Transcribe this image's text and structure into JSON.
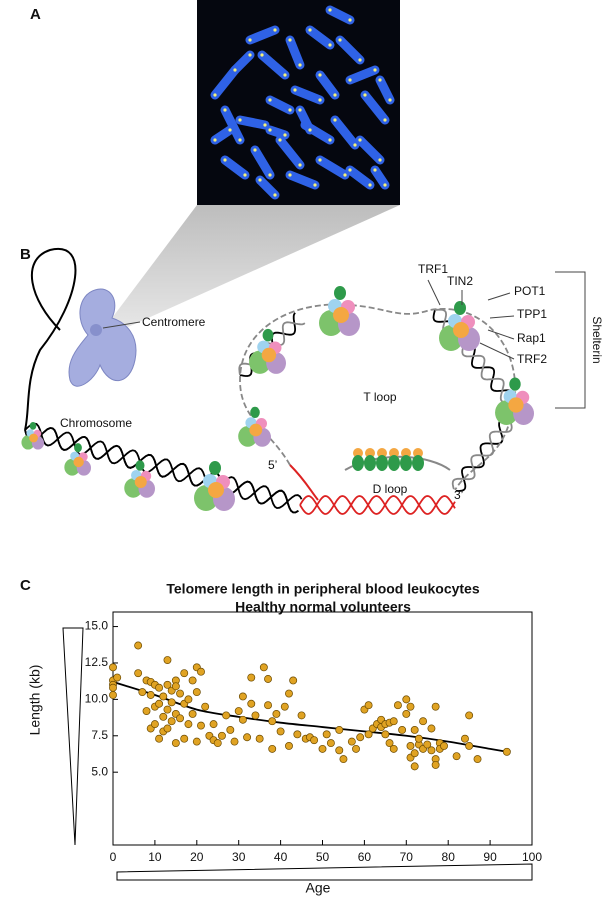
{
  "panels": {
    "a": {
      "label": "A"
    },
    "b": {
      "label": "B",
      "centromere": "Centromere",
      "chromosome": "Chromosome",
      "trf1": "TRF1",
      "tin2": "TIN2",
      "pot1": "POT1",
      "tpp1": "TPP1",
      "rap1": "Rap1",
      "trf2": "TRF2",
      "shelterin": "Shelterin",
      "t_loop": "T loop",
      "d_loop": "D loop",
      "five_prime": "5’",
      "three_prime": "3’"
    },
    "c": {
      "label": "C"
    }
  },
  "chart_data": {
    "type": "scatter",
    "title": "Telomere length in peripheral blood leukocytes",
    "subtitle": "Healthy normal volunteers",
    "x_label": "Age",
    "y_label": "Length (kb)",
    "xlim": [
      0,
      100
    ],
    "ylim": [
      0,
      16
    ],
    "xticks": [
      0,
      10,
      20,
      30,
      40,
      50,
      60,
      70,
      80,
      90,
      100
    ],
    "yticks": [
      {
        "value": 5,
        "label": "5.0"
      },
      {
        "value": 7.5,
        "label": "7.5"
      },
      {
        "value": 10,
        "label": "10.0"
      },
      {
        "value": 12.5,
        "label": "12.5"
      },
      {
        "value": 15,
        "label": "15.0"
      }
    ],
    "series": [
      {
        "color": "#e0a323",
        "x": [
          0,
          0,
          0,
          0,
          0,
          1,
          6,
          6,
          7,
          8,
          8,
          9,
          9,
          9,
          10,
          10,
          10,
          11,
          11,
          11,
          12,
          12,
          12,
          13,
          13,
          13,
          13,
          14,
          14,
          14,
          15,
          15,
          15,
          15,
          16,
          16,
          17,
          17,
          17,
          18,
          18,
          19,
          19,
          20,
          20,
          20,
          21,
          21,
          22,
          23,
          24,
          24,
          25,
          26,
          27,
          28,
          29,
          30,
          31,
          31,
          32,
          33,
          33,
          34,
          35,
          36,
          37,
          37,
          38,
          38,
          39,
          40,
          41,
          42,
          42,
          43,
          44,
          45,
          46,
          47,
          48,
          50,
          51,
          52,
          54,
          54,
          55,
          57,
          58,
          59,
          60,
          61,
          61,
          62,
          63,
          64,
          64,
          65,
          65,
          66,
          66,
          67,
          67,
          68,
          69,
          70,
          70,
          71,
          71,
          71,
          72,
          72,
          72,
          73,
          73,
          74,
          74,
          75,
          76,
          76,
          77,
          77,
          77,
          78,
          78,
          79,
          82,
          84,
          85,
          85,
          87,
          94
        ],
        "values": [
          12.2,
          11.3,
          11.0,
          10.8,
          10.3,
          11.5,
          13.7,
          11.8,
          10.5,
          11.3,
          9.2,
          11.2,
          10.3,
          8.0,
          11.0,
          9.5,
          8.3,
          10.8,
          9.7,
          7.3,
          10.2,
          8.8,
          7.8,
          12.7,
          11.0,
          9.3,
          8.0,
          10.6,
          9.8,
          8.5,
          11.3,
          10.9,
          9.0,
          7.0,
          10.4,
          8.7,
          11.8,
          9.7,
          7.3,
          10.0,
          8.3,
          11.3,
          9.0,
          12.2,
          10.5,
          7.1,
          11.9,
          8.2,
          9.5,
          7.5,
          8.3,
          7.2,
          7.0,
          7.5,
          8.9,
          7.9,
          7.1,
          9.2,
          10.2,
          8.6,
          7.4,
          11.5,
          9.7,
          8.9,
          7.3,
          12.2,
          11.4,
          9.6,
          8.5,
          6.6,
          9.0,
          7.8,
          9.5,
          6.8,
          10.4,
          11.3,
          7.6,
          8.9,
          7.3,
          7.4,
          7.2,
          6.6,
          7.6,
          7.0,
          7.9,
          6.5,
          5.9,
          7.1,
          6.6,
          7.4,
          9.3,
          9.6,
          7.6,
          8.0,
          8.3,
          8.6,
          8.1,
          8.3,
          7.6,
          8.4,
          7.0,
          8.5,
          6.6,
          9.6,
          7.9,
          10.0,
          9.0,
          9.5,
          6.8,
          6.0,
          7.9,
          5.4,
          6.3,
          6.9,
          7.3,
          8.5,
          6.6,
          6.9,
          8.0,
          6.5,
          9.5,
          5.9,
          5.5,
          7.0,
          6.6,
          6.8,
          6.1,
          7.3,
          8.9,
          6.8,
          5.9,
          6.4
        ]
      }
    ],
    "trend_line": {
      "color": "#000000",
      "x": [
        0,
        10,
        20,
        30,
        40,
        50,
        60,
        70,
        80,
        90,
        94
      ],
      "values": [
        11.2,
        10.3,
        9.3,
        8.8,
        8.4,
        8.1,
        7.8,
        7.5,
        7.1,
        6.6,
        6.4
      ]
    }
  }
}
